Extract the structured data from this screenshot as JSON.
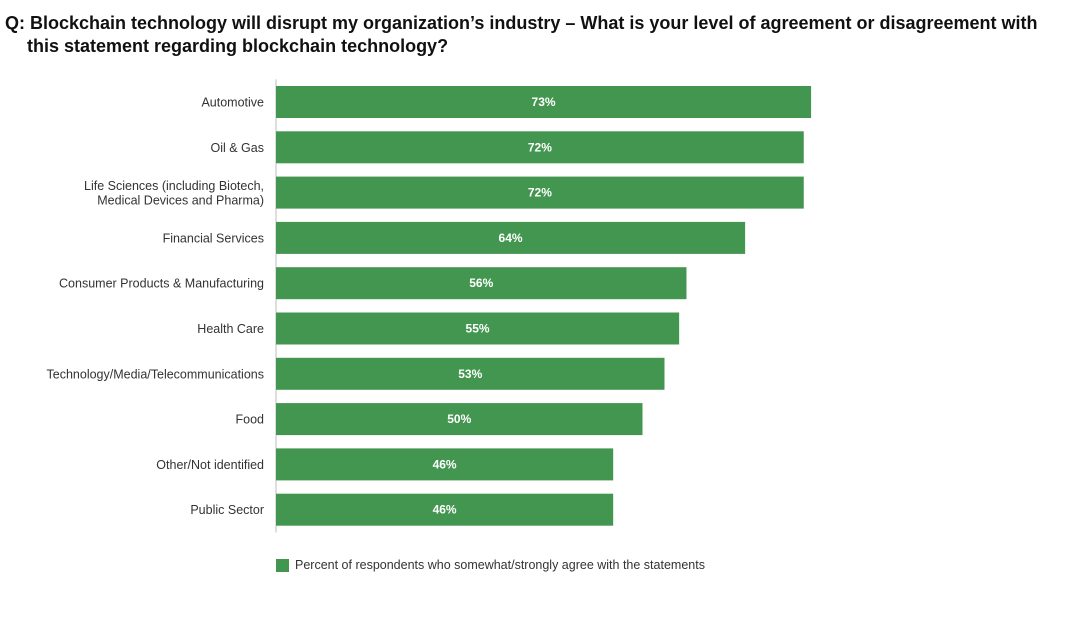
{
  "title": {
    "line1": "Q: Blockchain technology will disrupt my organization’s industry – What is your level of agreement or disagreement with",
    "line2": "this statement regarding blockchain technology?"
  },
  "colors": {
    "bar": "#43964f",
    "axis": "#bdbdbd"
  },
  "legend": {
    "label": "Percent of respondents who somewhat/strongly agree with the statements"
  },
  "chart_data": {
    "type": "bar",
    "orientation": "horizontal",
    "categories": [
      [
        "Automotive"
      ],
      [
        "Oil & Gas"
      ],
      [
        "Life Sciences (including Biotech,",
        "Medical Devices and Pharma)"
      ],
      [
        "Financial Services"
      ],
      [
        "Consumer Products & Manufacturing"
      ],
      [
        "Health Care"
      ],
      [
        "Technology/Media/Telecommunications"
      ],
      [
        "Food"
      ],
      [
        "Other/Not identified"
      ],
      [
        "Public Sector"
      ]
    ],
    "series": [
      {
        "name": "Percent of respondents who somewhat/strongly agree with the statements",
        "values": [
          73,
          72,
          72,
          64,
          56,
          55,
          53,
          50,
          46,
          46
        ]
      }
    ],
    "value_labels": [
      "73%",
      "72%",
      "72%",
      "64%",
      "56%",
      "55%",
      "53%",
      "50%",
      "46%",
      "46%"
    ],
    "xlim": [
      0,
      100
    ],
    "grid": false,
    "legend_position": "bottom-left"
  }
}
